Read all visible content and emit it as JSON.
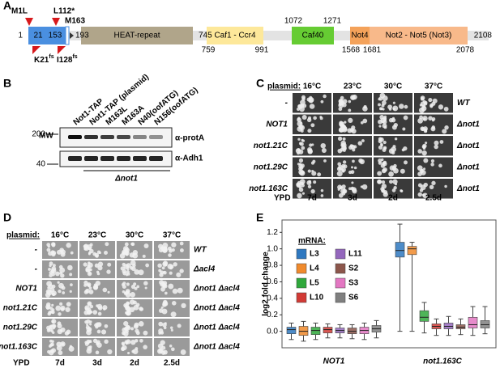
{
  "panel_a": {
    "label": "A",
    "mutations_top": [
      "M1L",
      "L112*",
      "M163"
    ],
    "mutations_bottom": [
      {
        "text": "K21",
        "sup": "fs"
      },
      {
        "text": "I128",
        "sup": "fs"
      }
    ],
    "positions": [
      1,
      21,
      153,
      193,
      745,
      759,
      991,
      1072,
      1271,
      1568,
      1681,
      2078,
      2108
    ],
    "domains": [
      "HEAT-repeat",
      "Caf1 - Ccr4",
      "Caf40",
      "Not4",
      "Not2 - Not5 (Not3)"
    ]
  },
  "panel_b": {
    "label": "B",
    "mw_label": "MW",
    "lanes": [
      "Not1-TAP",
      "Not1-TAP (plasmid)",
      "M163L",
      "M163A",
      "N40(oofATG)",
      "N156(oofATG)"
    ],
    "markers": [
      200,
      40
    ],
    "antibodies": [
      "α-protA",
      "α-Adh1"
    ],
    "strain": "Δnot1"
  },
  "panel_c": {
    "label": "C",
    "plasmid_label": "plasmid:",
    "temperatures": [
      "16°C",
      "23°C",
      "30°C",
      "37°C"
    ],
    "rows": [
      {
        "plasmid": "-",
        "strain": "WT"
      },
      {
        "plasmid": "NOT1",
        "strain": "Δnot1"
      },
      {
        "plasmid": "not1.21C",
        "strain": "Δnot1"
      },
      {
        "plasmid": "not1.29C",
        "strain": "Δnot1"
      },
      {
        "plasmid": "not1.163C",
        "strain": "Δnot1"
      }
    ],
    "medium": "YPD",
    "days": [
      "7d",
      "3d",
      "2d",
      "2.5d"
    ]
  },
  "panel_d": {
    "label": "D",
    "plasmid_label": "plasmid:",
    "temperatures": [
      "16°C",
      "23°C",
      "30°C",
      "37°C"
    ],
    "rows": [
      {
        "plasmid": "-",
        "strain": "WT"
      },
      {
        "plasmid": "-",
        "strain": "Δacl4"
      },
      {
        "plasmid": "NOT1",
        "strain": "Δnot1 Δacl4"
      },
      {
        "plasmid": "not1.21C",
        "strain": "Δnot1 Δacl4"
      },
      {
        "plasmid": "not1.29C",
        "strain": "Δnot1 Δacl4"
      },
      {
        "plasmid": "not1.163C",
        "strain": "Δnot1 Δacl4"
      }
    ],
    "medium": "YPD",
    "days": [
      "7d",
      "3d",
      "2d",
      "2.5d"
    ]
  },
  "panel_e": {
    "label": "E"
  },
  "chart_data": {
    "type": "box",
    "y_label": "log2 fold change",
    "legend_title": "mRNA:",
    "categories": [
      "NOT1",
      "not1.163C"
    ],
    "ylim": [
      -0.2,
      1.35
    ],
    "yticks": [
      {
        "value": 0,
        "label": "0.0"
      },
      0.2,
      0.4,
      0.6,
      0.8,
      {
        "value": 1,
        "label": "1.0"
      },
      1.2
    ],
    "series": [
      {
        "name": "L3",
        "color": "#2e78c0",
        "min": [
          -0.1,
          0.0
        ],
        "q1": [
          -0.03,
          0.9
        ],
        "median": [
          0.02,
          0.98
        ],
        "q3": [
          0.05,
          1.08
        ],
        "max": [
          0.1,
          1.3
        ]
      },
      {
        "name": "L4",
        "color": "#f08a2c",
        "min": [
          -0.12,
          0.0
        ],
        "q1": [
          -0.05,
          0.93
        ],
        "median": [
          0.0,
          1.0
        ],
        "q3": [
          0.06,
          1.03
        ],
        "max": [
          0.12,
          1.08
        ]
      },
      {
        "name": "L5",
        "color": "#2fa83b",
        "min": [
          -0.1,
          -0.02
        ],
        "q1": [
          -0.04,
          0.12
        ],
        "median": [
          0.01,
          0.17
        ],
        "q3": [
          0.05,
          0.25
        ],
        "max": [
          0.1,
          0.35
        ]
      },
      {
        "name": "L10",
        "color": "#d23a35",
        "min": [
          -0.08,
          -0.05
        ],
        "q1": [
          -0.02,
          0.03
        ],
        "median": [
          0.02,
          0.06
        ],
        "q3": [
          0.05,
          0.09
        ],
        "max": [
          0.09,
          0.15
        ]
      },
      {
        "name": "L11",
        "color": "#9467bd",
        "min": [
          -0.08,
          -0.05
        ],
        "q1": [
          -0.02,
          0.03
        ],
        "median": [
          0.01,
          0.06
        ],
        "q3": [
          0.04,
          0.1
        ],
        "max": [
          0.08,
          0.18
        ]
      },
      {
        "name": "S2",
        "color": "#8c564b",
        "min": [
          -0.09,
          -0.04
        ],
        "q1": [
          -0.03,
          0.03
        ],
        "median": [
          0.0,
          0.05
        ],
        "q3": [
          0.04,
          0.08
        ],
        "max": [
          0.08,
          0.15
        ]
      },
      {
        "name": "S3",
        "color": "#e377c2",
        "min": [
          -0.1,
          -0.05
        ],
        "q1": [
          -0.03,
          0.04
        ],
        "median": [
          0.01,
          0.08
        ],
        "q3": [
          0.05,
          0.17
        ],
        "max": [
          0.1,
          0.3
        ]
      },
      {
        "name": "S6",
        "color": "#7f7f7f",
        "min": [
          -0.08,
          -0.03
        ],
        "q1": [
          -0.01,
          0.04
        ],
        "median": [
          0.03,
          0.08
        ],
        "q3": [
          0.07,
          0.13
        ],
        "max": [
          0.13,
          0.3
        ]
      }
    ]
  }
}
